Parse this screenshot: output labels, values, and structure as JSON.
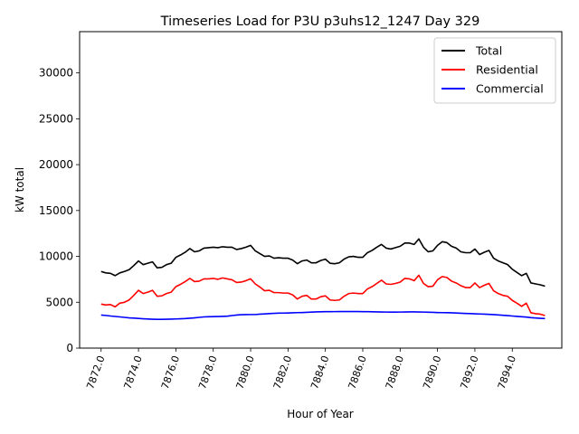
{
  "chart_data": {
    "type": "line",
    "title": "Timeseries Load for P3U p3uhs12_1247  Day 329",
    "xlabel": "Hour of Year",
    "ylabel": "kW total",
    "xlim": [
      7870.85,
      7896.65
    ],
    "ylim": [
      0,
      34500
    ],
    "xticks": [
      7872,
      7874,
      7876,
      7878,
      7880,
      7882,
      7884,
      7886,
      7888,
      7890,
      7892,
      7894
    ],
    "xtick_labels": [
      "7872.0",
      "7874.0",
      "7876.0",
      "7878.0",
      "7880.0",
      "7882.0",
      "7884.0",
      "7886.0",
      "7888.0",
      "7890.0",
      "7892.0",
      "7894.0"
    ],
    "yticks": [
      0,
      5000,
      10000,
      15000,
      20000,
      25000,
      30000
    ],
    "ytick_labels": [
      "0",
      "5000",
      "10000",
      "15000",
      "20000",
      "25000",
      "30000"
    ],
    "legend_position": "top-right",
    "x_start": 7872,
    "x_step": 0.25,
    "series": [
      {
        "name": "Total",
        "color": "#000000",
        "values": [
          8350,
          8200,
          8150,
          7900,
          8200,
          8350,
          8550,
          9000,
          9500,
          9100,
          9250,
          9400,
          8750,
          8800,
          9100,
          9250,
          9900,
          10150,
          10450,
          10850,
          10500,
          10600,
          10900,
          10950,
          11000,
          10950,
          11050,
          11000,
          11000,
          10750,
          10850,
          11000,
          11200,
          10600,
          10300,
          10000,
          10050,
          9800,
          9850,
          9800,
          9800,
          9600,
          9200,
          9500,
          9600,
          9300,
          9300,
          9550,
          9700,
          9250,
          9200,
          9300,
          9700,
          9950,
          10000,
          9900,
          9900,
          10400,
          10650,
          11000,
          11300,
          10900,
          10800,
          10950,
          11100,
          11450,
          11450,
          11300,
          11900,
          11000,
          10500,
          10600,
          11200,
          11600,
          11500,
          11100,
          10900,
          10500,
          10400,
          10400,
          10800,
          10200,
          10450,
          10650,
          9800,
          9500,
          9300,
          9100,
          8600,
          8250,
          7900,
          8150,
          7100,
          7000,
          6900,
          6750
        ]
      },
      {
        "name": "Residential",
        "color": "#ff0000",
        "values": [
          4800,
          4700,
          4750,
          4500,
          4900,
          5000,
          5250,
          5750,
          6300,
          5950,
          6100,
          6300,
          5650,
          5700,
          5950,
          6100,
          6700,
          6950,
          7250,
          7600,
          7250,
          7300,
          7550,
          7550,
          7600,
          7500,
          7650,
          7550,
          7450,
          7150,
          7200,
          7350,
          7550,
          7000,
          6650,
          6250,
          6300,
          6050,
          6050,
          6000,
          6000,
          5800,
          5350,
          5650,
          5750,
          5350,
          5350,
          5600,
          5700,
          5250,
          5200,
          5250,
          5650,
          5950,
          6000,
          5950,
          5950,
          6450,
          6700,
          7050,
          7400,
          7000,
          6950,
          7050,
          7200,
          7600,
          7550,
          7350,
          7950,
          7050,
          6700,
          6750,
          7450,
          7800,
          7700,
          7300,
          7100,
          6800,
          6600,
          6600,
          7100,
          6600,
          6850,
          7050,
          6250,
          5950,
          5750,
          5650,
          5200,
          4900,
          4550,
          4900,
          3850,
          3750,
          3700,
          3550
        ]
      },
      {
        "name": "Commercial",
        "color": "#0000ff",
        "values": [
          3600,
          3560,
          3500,
          3450,
          3400,
          3350,
          3300,
          3270,
          3230,
          3200,
          3170,
          3150,
          3140,
          3140,
          3150,
          3160,
          3180,
          3200,
          3220,
          3260,
          3300,
          3350,
          3400,
          3420,
          3430,
          3440,
          3460,
          3480,
          3550,
          3600,
          3640,
          3650,
          3660,
          3660,
          3700,
          3730,
          3760,
          3790,
          3810,
          3820,
          3830,
          3850,
          3870,
          3880,
          3900,
          3920,
          3950,
          3960,
          3970,
          3975,
          3980,
          3985,
          3990,
          3990,
          3990,
          3985,
          3970,
          3970,
          3960,
          3950,
          3940,
          3930,
          3920,
          3920,
          3930,
          3940,
          3950,
          3950,
          3940,
          3930,
          3910,
          3900,
          3880,
          3870,
          3860,
          3850,
          3830,
          3800,
          3780,
          3760,
          3740,
          3720,
          3700,
          3680,
          3650,
          3620,
          3580,
          3540,
          3500,
          3460,
          3420,
          3380,
          3320,
          3280,
          3250,
          3220
        ]
      }
    ]
  }
}
